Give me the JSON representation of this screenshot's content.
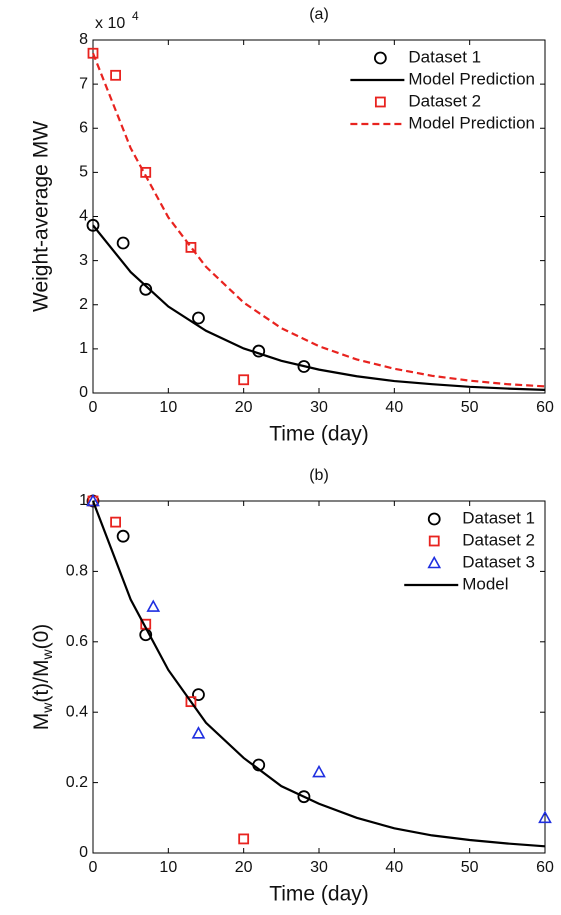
{
  "chart_data": [
    {
      "type": "line",
      "title": "(a)",
      "xlabel": "Time (day)",
      "ylabel": "Weight-average MW",
      "y_scale_base": "x 10",
      "y_scale_exponent": "4",
      "xlim": [
        0,
        60
      ],
      "xticks": [
        0,
        10,
        20,
        30,
        40,
        50,
        60
      ],
      "ylim": [
        0,
        8
      ],
      "yticks": [
        0,
        1,
        2,
        3,
        4,
        5,
        6,
        7,
        8
      ],
      "legend": "upper right",
      "series": [
        {
          "name": "Dataset 1",
          "color": "#000000",
          "marker": "circle",
          "x": [
            0,
            4,
            7,
            14,
            22,
            28
          ],
          "values": [
            3.8,
            3.4,
            2.35,
            1.7,
            0.95,
            0.6
          ]
        },
        {
          "name": "Model Prediction",
          "color": "#000000",
          "line_style": "solid",
          "x": [
            0,
            5,
            10,
            15,
            20,
            25,
            30,
            35,
            40,
            45,
            50,
            55,
            60
          ],
          "values": [
            3.8,
            2.74,
            1.96,
            1.41,
            1.01,
            0.73,
            0.53,
            0.38,
            0.27,
            0.2,
            0.14,
            0.1,
            0.07
          ]
        },
        {
          "name": "Dataset 2",
          "color": "#e8231f",
          "marker": "square",
          "x": [
            0,
            3,
            7,
            13,
            20
          ],
          "values": [
            7.7,
            7.2,
            5.0,
            3.3,
            0.3
          ]
        },
        {
          "name": "Model Prediction",
          "color": "#e8231f",
          "line_style": "dashed",
          "x": [
            0,
            5,
            10,
            15,
            20,
            25,
            30,
            35,
            40,
            45,
            50,
            55,
            60
          ],
          "values": [
            7.7,
            5.55,
            3.98,
            2.86,
            2.05,
            1.47,
            1.06,
            0.76,
            0.55,
            0.39,
            0.28,
            0.2,
            0.15
          ]
        }
      ]
    },
    {
      "type": "line",
      "title": "(b)",
      "xlabel": "Time (day)",
      "ylabel_parts": [
        "M",
        "w",
        "(t)/M",
        "w",
        "(0)"
      ],
      "xlim": [
        0,
        60
      ],
      "xticks": [
        0,
        10,
        20,
        30,
        40,
        50,
        60
      ],
      "ylim": [
        0,
        1
      ],
      "yticks": [
        0,
        0.2,
        0.4,
        0.6,
        0.8,
        1
      ],
      "legend": "upper right",
      "series": [
        {
          "name": "Dataset 1",
          "color": "#000000",
          "marker": "circle",
          "x": [
            0,
            4,
            7,
            14,
            22,
            28
          ],
          "values": [
            1,
            0.9,
            0.62,
            0.45,
            0.25,
            0.16
          ]
        },
        {
          "name": "Dataset 2",
          "color": "#e8231f",
          "marker": "square",
          "x": [
            0,
            3,
            7,
            13,
            20
          ],
          "values": [
            1,
            0.94,
            0.65,
            0.43,
            0.04
          ]
        },
        {
          "name": "Dataset 3",
          "color": "#1f2fe0",
          "marker": "triangle",
          "x": [
            0,
            8,
            14,
            30,
            60
          ],
          "values": [
            1,
            0.7,
            0.34,
            0.23,
            0.1
          ]
        },
        {
          "name": "Model",
          "color": "#000000",
          "line_style": "solid",
          "x": [
            0,
            5,
            10,
            15,
            20,
            25,
            30,
            35,
            40,
            45,
            50,
            55,
            60
          ],
          "values": [
            1,
            0.72,
            0.52,
            0.37,
            0.27,
            0.19,
            0.14,
            0.1,
            0.07,
            0.05,
            0.037,
            0.027,
            0.019
          ]
        }
      ]
    }
  ]
}
